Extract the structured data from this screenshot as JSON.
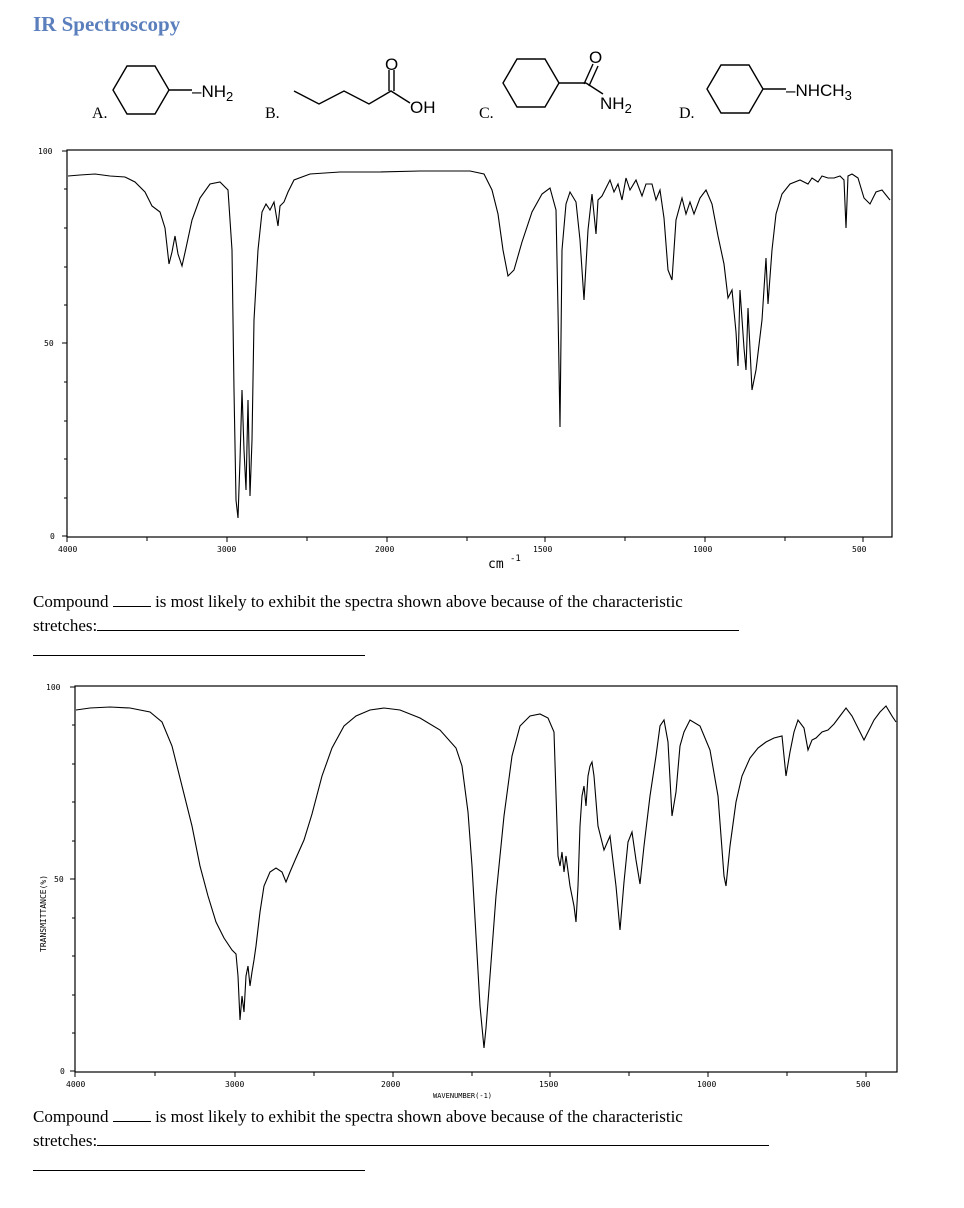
{
  "title": "IR Spectroscopy",
  "compounds": [
    {
      "letter": "A.",
      "group": "NH2"
    },
    {
      "letter": "B.",
      "group_o": "O",
      "group_oh": "OH"
    },
    {
      "letter": "C.",
      "group_o": "O",
      "group_nh2": "NH2"
    },
    {
      "letter": "D.",
      "group": "NHCH3"
    }
  ],
  "spectrum1": {
    "x_unit": "cm",
    "x_unit_exp": "-1",
    "y_ticks": [
      "100",
      "50",
      "0"
    ],
    "x_ticks": [
      "4000",
      "3000",
      "2000",
      "1500",
      "1000",
      "500"
    ]
  },
  "spectrum2": {
    "y_label": "TRANSMITTANCE(%)",
    "x_label": "WAVENUMBER(-1)",
    "y_ticks": [
      "100",
      "50",
      "0"
    ],
    "x_ticks": [
      "4000",
      "3000",
      "2000",
      "1500",
      "1000",
      "500"
    ]
  },
  "question1": {
    "lead": "Compound",
    "rest": "is most likely to exhibit the spectra shown above because of the characteristic",
    "line2": "stretches:"
  },
  "question2": {
    "lead": "Compound",
    "rest": "is most likely to exhibit the spectra shown above because of the characteristic",
    "line2": "stretches:"
  }
}
